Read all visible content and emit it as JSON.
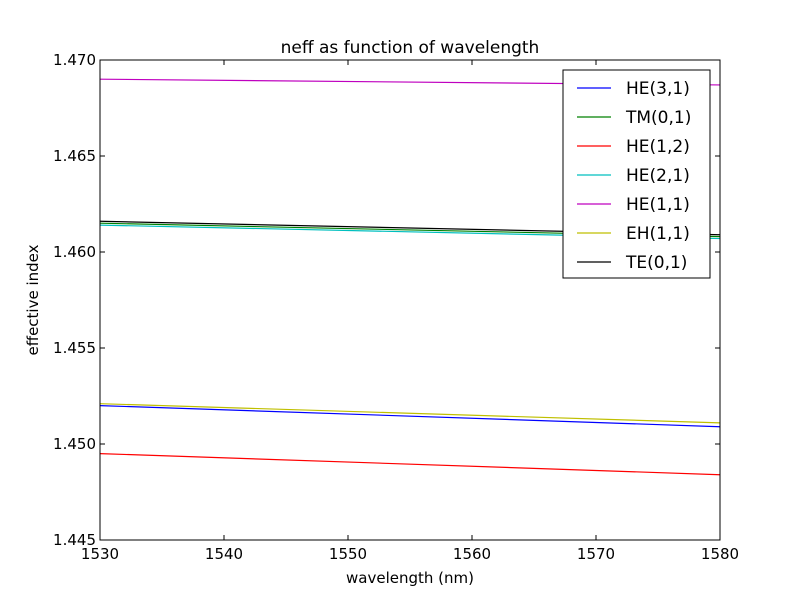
{
  "chart_data": {
    "type": "line",
    "title": "neff as function of wavelength",
    "xlabel": "wavelength (nm)",
    "ylabel": "effective index",
    "xlim": [
      1530,
      1580
    ],
    "ylim": [
      1.445,
      1.47
    ],
    "x_ticks": [
      "1530",
      "1540",
      "1550",
      "1560",
      "1570",
      "1580"
    ],
    "y_ticks": [
      "1.445",
      "1.450",
      "1.455",
      "1.460",
      "1.465",
      "1.470"
    ],
    "grid": false,
    "legend_position": "top-right",
    "x": [
      1530,
      1580
    ],
    "series": [
      {
        "name": "HE(3,1)",
        "color": "#0000ff",
        "values": [
          1.452,
          1.4509
        ]
      },
      {
        "name": "TM(0,1)",
        "color": "#008000",
        "values": [
          1.4615,
          1.4608
        ]
      },
      {
        "name": "HE(1,2)",
        "color": "#ff0000",
        "values": [
          1.4495,
          1.4484
        ]
      },
      {
        "name": "HE(2,1)",
        "color": "#00bfbf",
        "values": [
          1.4614,
          1.4607
        ]
      },
      {
        "name": "HE(1,1)",
        "color": "#bf00bf",
        "values": [
          1.469,
          1.4687
        ]
      },
      {
        "name": "EH(1,1)",
        "color": "#bfbf00",
        "values": [
          1.4521,
          1.4511
        ]
      },
      {
        "name": "TE(0,1)",
        "color": "#000000",
        "values": [
          1.4616,
          1.4609
        ]
      }
    ]
  }
}
